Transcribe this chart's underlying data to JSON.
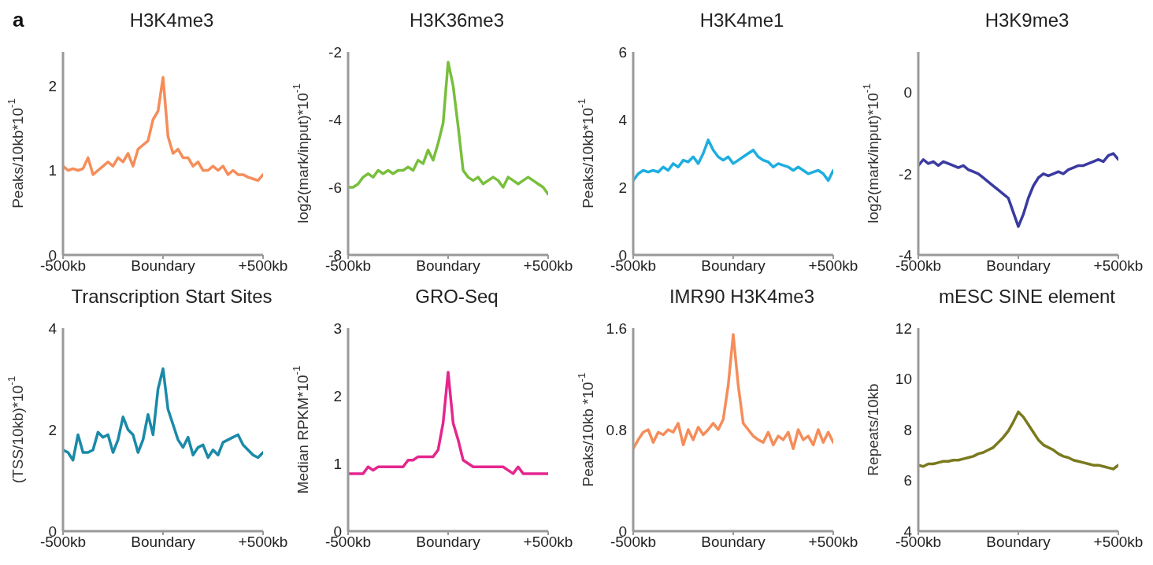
{
  "chart_data": [
    {
      "type": "line",
      "title": "H3K4me3",
      "ylabel": "Peaks/10kb*10$^{-1}$",
      "annotations": [
        "a"
      ],
      "x": [
        -500,
        -475,
        -450,
        -425,
        -400,
        -375,
        -350,
        -325,
        -300,
        -275,
        -250,
        -225,
        -200,
        -175,
        -150,
        -125,
        -100,
        -75,
        -50,
        -25,
        0,
        25,
        50,
        75,
        100,
        125,
        150,
        175,
        200,
        225,
        250,
        275,
        300,
        325,
        350,
        375,
        400,
        425,
        450,
        475,
        500
      ],
      "xlim": [
        -500,
        500
      ],
      "xticks": [
        {
          "value": -500,
          "label": "-500kb"
        },
        {
          "value": 0,
          "label": "Boundary"
        },
        {
          "value": 500,
          "label": "+500kb"
        }
      ],
      "ylim": [
        0,
        2.4
      ],
      "yticks": [
        0,
        1,
        2
      ],
      "series": [
        {
          "color": "#f58d5a",
          "values": [
            1.05,
            1.0,
            1.02,
            1.0,
            1.02,
            1.15,
            0.95,
            1.0,
            1.05,
            1.1,
            1.05,
            1.15,
            1.1,
            1.2,
            1.05,
            1.25,
            1.3,
            1.35,
            1.6,
            1.7,
            2.1,
            1.4,
            1.2,
            1.25,
            1.15,
            1.15,
            1.05,
            1.1,
            1.0,
            1.0,
            1.05,
            1.0,
            1.05,
            0.95,
            1.0,
            0.95,
            0.95,
            0.92,
            0.9,
            0.88,
            0.95
          ]
        }
      ]
    },
    {
      "type": "line",
      "title": "H3K36me3",
      "ylabel": "log2(mark/input)*10$^{-1}$",
      "x": [
        -500,
        -475,
        -450,
        -425,
        -400,
        -375,
        -350,
        -325,
        -300,
        -275,
        -250,
        -225,
        -200,
        -175,
        -150,
        -125,
        -100,
        -75,
        -50,
        -25,
        0,
        25,
        50,
        75,
        100,
        125,
        150,
        175,
        200,
        225,
        250,
        275,
        300,
        325,
        350,
        375,
        400,
        425,
        450,
        475,
        500
      ],
      "xlim": [
        -500,
        500
      ],
      "xticks": [
        {
          "value": -500,
          "label": "-500kb"
        },
        {
          "value": 0,
          "label": "Boundary"
        },
        {
          "value": 500,
          "label": "+500kb"
        }
      ],
      "ylim": [
        -8,
        -2
      ],
      "yticks": [
        -8,
        -6,
        -4,
        -2
      ],
      "series": [
        {
          "color": "#78bf3c",
          "values": [
            -6.0,
            -6.0,
            -5.9,
            -5.7,
            -5.6,
            -5.7,
            -5.5,
            -5.6,
            -5.5,
            -5.6,
            -5.5,
            -5.5,
            -5.4,
            -5.5,
            -5.2,
            -5.3,
            -4.9,
            -5.2,
            -4.7,
            -4.1,
            -2.3,
            -3.0,
            -4.2,
            -5.5,
            -5.7,
            -5.8,
            -5.7,
            -5.9,
            -5.8,
            -5.7,
            -5.8,
            -6.0,
            -5.7,
            -5.8,
            -5.9,
            -5.8,
            -5.7,
            -5.8,
            -5.9,
            -6.0,
            -6.2
          ]
        }
      ]
    },
    {
      "type": "line",
      "title": "H3K4me1",
      "ylabel": "Peaks/10kb*10$^{-1}$",
      "x": [
        -500,
        -475,
        -450,
        -425,
        -400,
        -375,
        -350,
        -325,
        -300,
        -275,
        -250,
        -225,
        -200,
        -175,
        -150,
        -125,
        -100,
        -75,
        -50,
        -25,
        0,
        25,
        50,
        75,
        100,
        125,
        150,
        175,
        200,
        225,
        250,
        275,
        300,
        325,
        350,
        375,
        400,
        425,
        450,
        475,
        500
      ],
      "xlim": [
        -500,
        500
      ],
      "xticks": [
        {
          "value": -500,
          "label": "-500kb"
        },
        {
          "value": 0,
          "label": "Boundary"
        },
        {
          "value": 500,
          "label": "+500kb"
        }
      ],
      "ylim": [
        0,
        6
      ],
      "yticks": [
        0,
        2,
        4,
        6
      ],
      "series": [
        {
          "color": "#1eaee0",
          "values": [
            2.2,
            2.4,
            2.5,
            2.45,
            2.5,
            2.45,
            2.6,
            2.5,
            2.7,
            2.6,
            2.8,
            2.75,
            2.9,
            2.7,
            3.0,
            3.4,
            3.1,
            2.9,
            2.8,
            2.9,
            2.7,
            2.8,
            2.9,
            3.0,
            3.1,
            2.9,
            2.8,
            2.75,
            2.6,
            2.7,
            2.65,
            2.6,
            2.5,
            2.6,
            2.5,
            2.4,
            2.45,
            2.5,
            2.4,
            2.2,
            2.5
          ]
        }
      ]
    },
    {
      "type": "line",
      "title": "H3K9me3",
      "ylabel": "log2(mark/input)*10$^{-1}$",
      "x": [
        -500,
        -475,
        -450,
        -425,
        -400,
        -375,
        -350,
        -325,
        -300,
        -275,
        -250,
        -225,
        -200,
        -175,
        -150,
        -125,
        -100,
        -75,
        -50,
        -25,
        0,
        25,
        50,
        75,
        100,
        125,
        150,
        175,
        200,
        225,
        250,
        275,
        300,
        325,
        350,
        375,
        400,
        425,
        450,
        475,
        500
      ],
      "xlim": [
        -500,
        500
      ],
      "xticks": [
        {
          "value": -500,
          "label": "-500kb"
        },
        {
          "value": 0,
          "label": "Boundary"
        },
        {
          "value": 500,
          "label": "+500kb"
        }
      ],
      "ylim": [
        -4,
        1
      ],
      "yticks": [
        -4,
        -2,
        0
      ],
      "series": [
        {
          "color": "#3a3ba0",
          "values": [
            -1.8,
            -1.65,
            -1.75,
            -1.7,
            -1.8,
            -1.7,
            -1.75,
            -1.8,
            -1.85,
            -1.8,
            -1.9,
            -1.95,
            -2.0,
            -2.1,
            -2.2,
            -2.3,
            -2.4,
            -2.5,
            -2.6,
            -2.95,
            -3.3,
            -3.0,
            -2.6,
            -2.3,
            -2.1,
            -2.0,
            -2.05,
            -2.0,
            -1.95,
            -2.0,
            -1.9,
            -1.85,
            -1.8,
            -1.8,
            -1.75,
            -1.7,
            -1.65,
            -1.7,
            -1.55,
            -1.5,
            -1.65
          ]
        }
      ]
    },
    {
      "type": "line",
      "title": "Transcription Start Sites",
      "ylabel": "(TSS/10kb)*10$^{-1}$",
      "x": [
        -500,
        -475,
        -450,
        -425,
        -400,
        -375,
        -350,
        -325,
        -300,
        -275,
        -250,
        -225,
        -200,
        -175,
        -150,
        -125,
        -100,
        -75,
        -50,
        -25,
        0,
        25,
        50,
        75,
        100,
        125,
        150,
        175,
        200,
        225,
        250,
        275,
        300,
        325,
        350,
        375,
        400,
        425,
        450,
        475,
        500
      ],
      "xlim": [
        -500,
        500
      ],
      "xticks": [
        {
          "value": -500,
          "label": "-500kb"
        },
        {
          "value": 0,
          "label": "Boundary"
        },
        {
          "value": 500,
          "label": "+500kb"
        }
      ],
      "ylim": [
        0,
        4
      ],
      "yticks": [
        0,
        2,
        4
      ],
      "series": [
        {
          "color": "#1a8aa8",
          "values": [
            1.6,
            1.55,
            1.4,
            1.9,
            1.55,
            1.55,
            1.6,
            1.95,
            1.85,
            1.9,
            1.55,
            1.8,
            2.25,
            2.0,
            1.9,
            1.55,
            1.8,
            2.3,
            1.9,
            2.8,
            3.2,
            2.4,
            2.1,
            1.8,
            1.65,
            1.85,
            1.5,
            1.65,
            1.7,
            1.45,
            1.6,
            1.5,
            1.75,
            1.8,
            1.85,
            1.9,
            1.7,
            1.6,
            1.5,
            1.45,
            1.55
          ]
        }
      ]
    },
    {
      "type": "line",
      "title": "GRO-Seq",
      "ylabel": "Median RPKM*10$^{-1}$",
      "x": [
        -500,
        -475,
        -450,
        -425,
        -400,
        -375,
        -350,
        -325,
        -300,
        -275,
        -250,
        -225,
        -200,
        -175,
        -150,
        -125,
        -100,
        -75,
        -50,
        -25,
        0,
        25,
        50,
        75,
        100,
        125,
        150,
        175,
        200,
        225,
        250,
        275,
        300,
        325,
        350,
        375,
        400,
        425,
        450,
        475,
        500
      ],
      "xlim": [
        -500,
        500
      ],
      "xticks": [
        {
          "value": -500,
          "label": "-500kb"
        },
        {
          "value": 0,
          "label": "Boundary"
        },
        {
          "value": 500,
          "label": "+500kb"
        }
      ],
      "ylim": [
        0,
        3
      ],
      "yticks": [
        0,
        1,
        2,
        3
      ],
      "series": [
        {
          "color": "#e5268e",
          "values": [
            0.85,
            0.85,
            0.85,
            0.85,
            0.95,
            0.9,
            0.95,
            0.95,
            0.95,
            0.95,
            0.95,
            0.95,
            1.05,
            1.05,
            1.1,
            1.1,
            1.1,
            1.1,
            1.2,
            1.6,
            2.35,
            1.6,
            1.35,
            1.05,
            1.0,
            0.95,
            0.95,
            0.95,
            0.95,
            0.95,
            0.95,
            0.95,
            0.9,
            0.85,
            0.95,
            0.85,
            0.85,
            0.85,
            0.85,
            0.85,
            0.85
          ]
        }
      ]
    },
    {
      "type": "line",
      "title": "IMR90 H3K4me3",
      "ylabel": "Peaks/10kb *10$^{-1}$",
      "x": [
        -500,
        -475,
        -450,
        -425,
        -400,
        -375,
        -350,
        -325,
        -300,
        -275,
        -250,
        -225,
        -200,
        -175,
        -150,
        -125,
        -100,
        -75,
        -50,
        -25,
        0,
        25,
        50,
        75,
        100,
        125,
        150,
        175,
        200,
        225,
        250,
        275,
        300,
        325,
        350,
        375,
        400,
        425,
        450,
        475,
        500
      ],
      "xlim": [
        -500,
        500
      ],
      "xticks": [
        {
          "value": -500,
          "label": "-500kb"
        },
        {
          "value": 0,
          "label": "Boundary"
        },
        {
          "value": 500,
          "label": "+500kb"
        }
      ],
      "ylim": [
        0,
        1.6
      ],
      "yticks": [
        0,
        0.8,
        1.6
      ],
      "series": [
        {
          "color": "#f58d5a",
          "values": [
            0.65,
            0.72,
            0.78,
            0.8,
            0.7,
            0.78,
            0.76,
            0.8,
            0.78,
            0.85,
            0.68,
            0.8,
            0.72,
            0.82,
            0.76,
            0.8,
            0.85,
            0.8,
            0.88,
            1.15,
            1.55,
            1.15,
            0.85,
            0.8,
            0.75,
            0.72,
            0.7,
            0.78,
            0.68,
            0.75,
            0.72,
            0.78,
            0.65,
            0.8,
            0.72,
            0.75,
            0.68,
            0.8,
            0.7,
            0.78,
            0.7
          ]
        }
      ]
    },
    {
      "type": "line",
      "title": "mESC SINE element",
      "ylabel": "Repeats/10kb",
      "x": [
        -500,
        -475,
        -450,
        -425,
        -400,
        -375,
        -350,
        -325,
        -300,
        -275,
        -250,
        -225,
        -200,
        -175,
        -150,
        -125,
        -100,
        -75,
        -50,
        -25,
        0,
        25,
        50,
        75,
        100,
        125,
        150,
        175,
        200,
        225,
        250,
        275,
        300,
        325,
        350,
        375,
        400,
        425,
        450,
        475,
        500
      ],
      "xlim": [
        -500,
        500
      ],
      "xticks": [
        {
          "value": -500,
          "label": "-500kb"
        },
        {
          "value": 0,
          "label": "Boundary"
        },
        {
          "value": 500,
          "label": "+500kb"
        }
      ],
      "ylim": [
        4,
        12
      ],
      "yticks": [
        4,
        6,
        8,
        10,
        12
      ],
      "series": [
        {
          "color": "#7a7a1e",
          "values": [
            6.6,
            6.55,
            6.65,
            6.65,
            6.7,
            6.75,
            6.75,
            6.8,
            6.8,
            6.85,
            6.9,
            6.95,
            7.05,
            7.1,
            7.2,
            7.3,
            7.5,
            7.7,
            7.95,
            8.3,
            8.7,
            8.5,
            8.2,
            7.9,
            7.6,
            7.4,
            7.3,
            7.2,
            7.05,
            6.95,
            6.9,
            6.8,
            6.75,
            6.7,
            6.65,
            6.6,
            6.6,
            6.55,
            6.5,
            6.45,
            6.6
          ]
        }
      ]
    }
  ]
}
